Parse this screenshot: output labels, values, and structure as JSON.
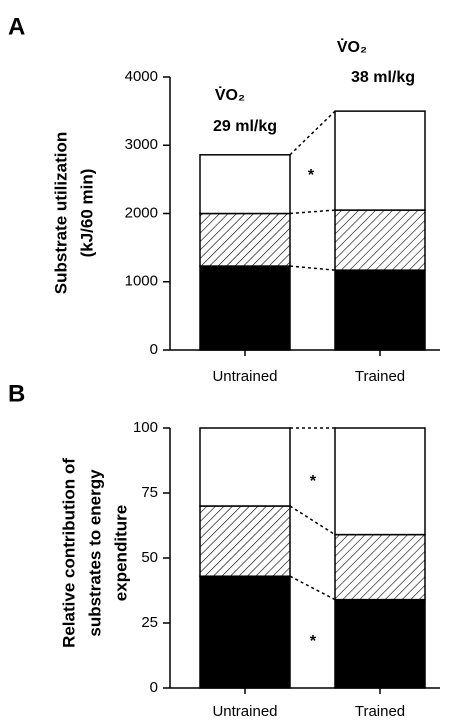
{
  "chart_data": [
    {
      "type": "stacked_bar",
      "panel": "A",
      "ylabel": [
        "Substrate  utilization",
        "(kJ/60  min)"
      ],
      "categories": [
        "Untrained",
        "Trained"
      ],
      "series": [
        {
          "color": "#000000",
          "values": [
            1230,
            1170
          ]
        },
        {
          "color": "#ffffff",
          "hatch": true,
          "values": [
            770,
            880
          ]
        },
        {
          "color": "#ffffff",
          "values": [
            860,
            1450
          ]
        }
      ],
      "ylim": [
        0,
        4000
      ],
      "yticks": [
        0,
        1000,
        2000,
        3000,
        4000
      ],
      "annotations": [
        "V̇O₂",
        "29  ml/kg",
        "V̇O₂",
        "38  ml/kg",
        "*"
      ]
    },
    {
      "type": "stacked_bar",
      "panel": "B",
      "ylabel": [
        "Relative contribution of",
        "substrates to energy",
        "expenditure"
      ],
      "categories": [
        "Untrained",
        "Trained"
      ],
      "series": [
        {
          "color": "#000000",
          "values": [
            43,
            34
          ]
        },
        {
          "color": "#ffffff",
          "hatch": true,
          "values": [
            27,
            25
          ]
        },
        {
          "color": "#ffffff",
          "values": [
            30,
            41
          ]
        }
      ],
      "ylim": [
        0,
        100
      ],
      "yticks": [
        0,
        25,
        50,
        75,
        100
      ],
      "annotations": [
        "*",
        "*"
      ]
    }
  ]
}
